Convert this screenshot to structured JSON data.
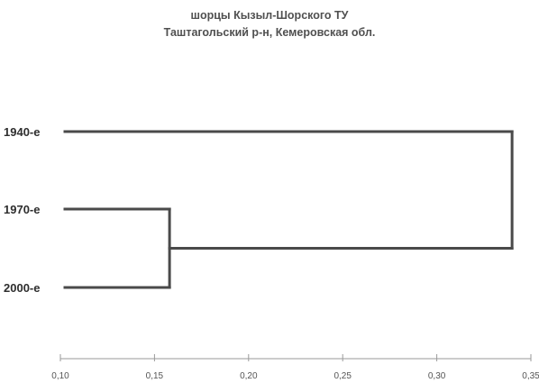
{
  "chart_data": {
    "type": "dendrogram",
    "title": "шорцы Кызыл-Шорского ТУ",
    "subtitle": "Таштагольский р-н, Кемеровская обл.",
    "leaves": [
      "1940-е",
      "1970-е",
      "2000-е"
    ],
    "merges": [
      {
        "join": [
          "1970-е",
          "2000-е"
        ],
        "height": 0.158
      },
      {
        "join": [
          "1940-е",
          "cluster(1970-е, 2000-е)"
        ],
        "height": 0.34
      }
    ],
    "xlim": [
      0.1,
      0.35
    ],
    "x_ticks": [
      0.1,
      0.15,
      0.2,
      0.25,
      0.3,
      0.35
    ],
    "x_tick_labels": [
      "0,10",
      "0,15",
      "0,20",
      "0,25",
      "0,30",
      "0,35"
    ],
    "xlabel": "",
    "ylabel": "",
    "grid": false,
    "legend": "none",
    "line_color": "#4a4a4a",
    "axis_color": "#9a9a9a"
  }
}
